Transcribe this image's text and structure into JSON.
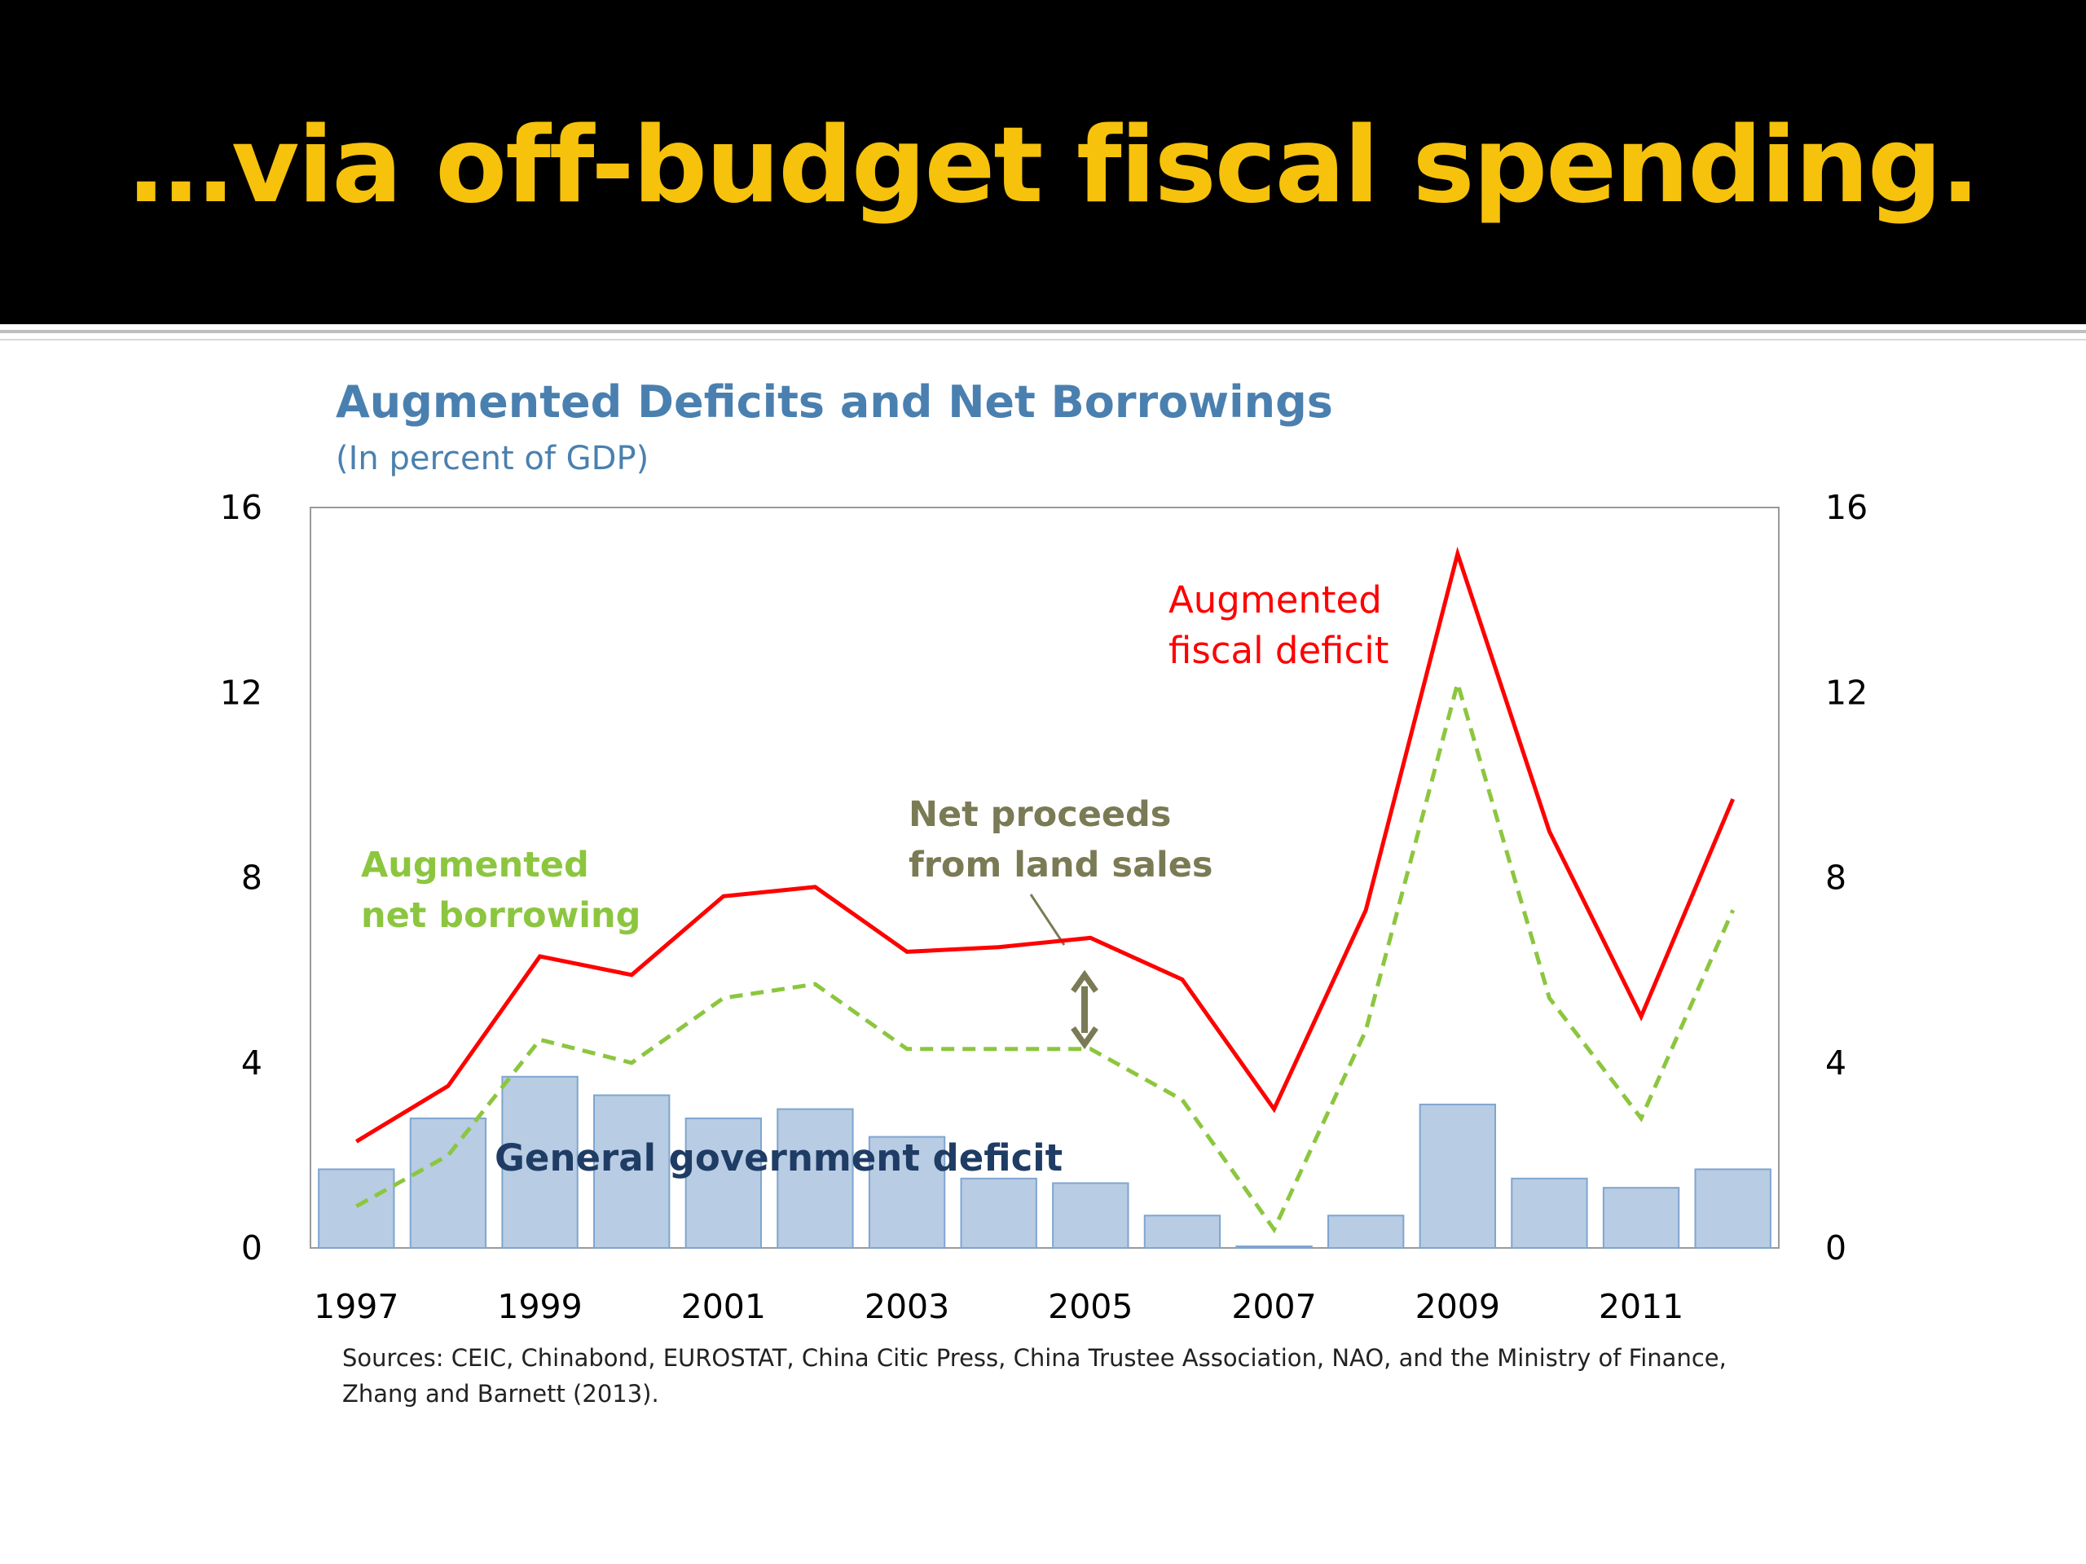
{
  "slide": {
    "title": "…via off-budget fiscal spending."
  },
  "chart_data": {
    "type": "bar+line",
    "title": "Augmented Deficits and Net Borrowings",
    "subtitle": "(In percent of GDP)",
    "ylim": [
      0,
      16
    ],
    "yticks": [
      "0",
      "4",
      "8",
      "12",
      "16"
    ],
    "x": [
      1997,
      1998,
      1999,
      2000,
      2001,
      2002,
      2003,
      2004,
      2005,
      2006,
      2007,
      2008,
      2009,
      2010,
      2011,
      2012
    ],
    "xtick_labels": [
      "1997",
      "1999",
      "2001",
      "2003",
      "2005",
      "2007",
      "2009",
      "2011"
    ],
    "series": [
      {
        "name": "General government deficit",
        "kind": "bar",
        "color": "#b8cce4",
        "values": [
          1.7,
          2.8,
          3.7,
          3.3,
          2.8,
          3.0,
          2.4,
          1.5,
          1.4,
          0.7,
          0.0,
          0.7,
          3.1,
          1.5,
          1.3,
          1.7
        ]
      },
      {
        "name": "Augmented fiscal deficit",
        "kind": "line",
        "color": "#ff0000",
        "values": [
          2.3,
          3.5,
          6.3,
          5.9,
          7.6,
          7.8,
          6.4,
          6.5,
          6.7,
          5.8,
          3.0,
          7.3,
          15.0,
          9.0,
          5.0,
          9.7
        ]
      },
      {
        "name": "Augmented net borrowing",
        "kind": "dashed-line",
        "color": "#8cc63f",
        "values": [
          0.9,
          2.0,
          4.5,
          4.0,
          5.4,
          5.7,
          4.3,
          4.3,
          4.3,
          3.2,
          0.4,
          4.7,
          12.2,
          5.4,
          2.8,
          7.3
        ]
      }
    ],
    "annotations": {
      "fiscal_deficit_line1": "Augmented",
      "fiscal_deficit_line2": "fiscal deficit",
      "net_borrowing_line1": "Augmented",
      "net_borrowing_line2": "net borrowing",
      "land_sales_line1": "Net proceeds",
      "land_sales_line2": "from land sales",
      "gov_deficit": "General government deficit"
    },
    "annotation_colors": {
      "fiscal": "#ff0000",
      "borrowing": "#8cc63f",
      "land": "#7a7a55",
      "gov": "#1f3c64"
    },
    "sources": "Sources: CEIC, Chinabond, EUROSTAT, China Citic Press, China Trustee Association, NAO, and the Ministry of Finance, Zhang and Barnett (2013)."
  }
}
